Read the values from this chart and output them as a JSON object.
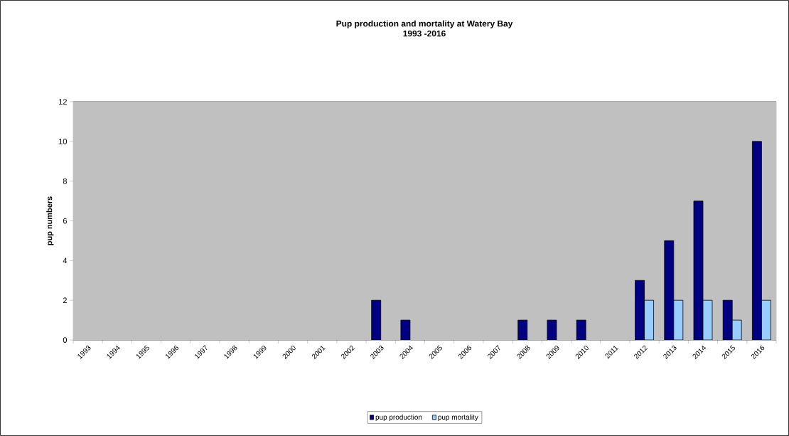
{
  "chart_data": {
    "type": "bar",
    "title": "Pup production  and mortality at Watery Bay",
    "subtitle": "1993 -2016",
    "ylabel": "pup numbers",
    "categories": [
      "1993",
      "1994",
      "1995",
      "1996",
      "1997",
      "1998",
      "1999",
      "2000",
      "2001",
      "2002",
      "2003",
      "2004",
      "2005",
      "2006",
      "2007",
      "2008",
      "2009",
      "2010",
      "2011",
      "2012",
      "2013",
      "2014",
      "2015",
      "2016"
    ],
    "series": [
      {
        "name": "pup production",
        "color": "#000080",
        "values": [
          0,
          0,
          0,
          0,
          0,
          0,
          0,
          0,
          0,
          0,
          2,
          1,
          0,
          0,
          0,
          1,
          1,
          1,
          0,
          3,
          5,
          7,
          2,
          10
        ]
      },
      {
        "name": "pup mortality",
        "color": "#99ccff",
        "values": [
          0,
          0,
          0,
          0,
          0,
          0,
          0,
          0,
          0,
          0,
          0,
          0,
          0,
          0,
          0,
          0,
          0,
          0,
          0,
          2,
          2,
          2,
          1,
          2
        ]
      }
    ],
    "ylim": [
      0,
      12
    ],
    "yticks": [
      0,
      2,
      4,
      6,
      8,
      10,
      12
    ],
    "grid": "y",
    "legend": "bottom"
  }
}
